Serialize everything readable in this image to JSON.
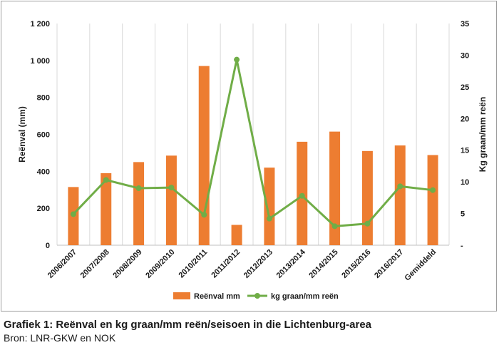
{
  "chart_data": {
    "type": "bar",
    "categories": [
      "2006/2007",
      "2007/2008",
      "2008/2009",
      "2009/2010",
      "2010/2011",
      "2011/2012",
      "2012/2013",
      "2013/2014",
      "2014/2015",
      "2015/2016",
      "2016/2017",
      "Gemiddeld"
    ],
    "series": [
      {
        "name": "Reënval mm",
        "type": "bar",
        "axis": "left",
        "color": "#ed7d31",
        "values": [
          315,
          390,
          450,
          485,
          970,
          110,
          420,
          560,
          615,
          510,
          540,
          488
        ]
      },
      {
        "name": "kg graan/mm reën",
        "type": "line",
        "axis": "right",
        "color": "#70ad47",
        "values": [
          4.9,
          10.3,
          9.0,
          9.1,
          4.8,
          29.3,
          4.2,
          7.8,
          3.0,
          3.4,
          9.3,
          8.7
        ]
      }
    ],
    "ylabel": "Reënval (mm)",
    "y2label": "Kg graan/mm reën",
    "ylim": [
      0,
      1200
    ],
    "y2lim": [
      0,
      35
    ],
    "yticks": [
      "0",
      "200",
      "400",
      "600",
      "800",
      "1 000",
      "1 200"
    ],
    "y2ticks": [
      "-",
      "5",
      "10",
      "15",
      "20",
      "25",
      "30",
      "35"
    ],
    "grid": "vertical",
    "legend_position": "bottom"
  },
  "caption": {
    "title": "Grafiek 1: Reënval en kg graan/mm reën/seisoen in die Lichtenburg-area",
    "source": "Bron: LNR-GKW en NOK"
  }
}
